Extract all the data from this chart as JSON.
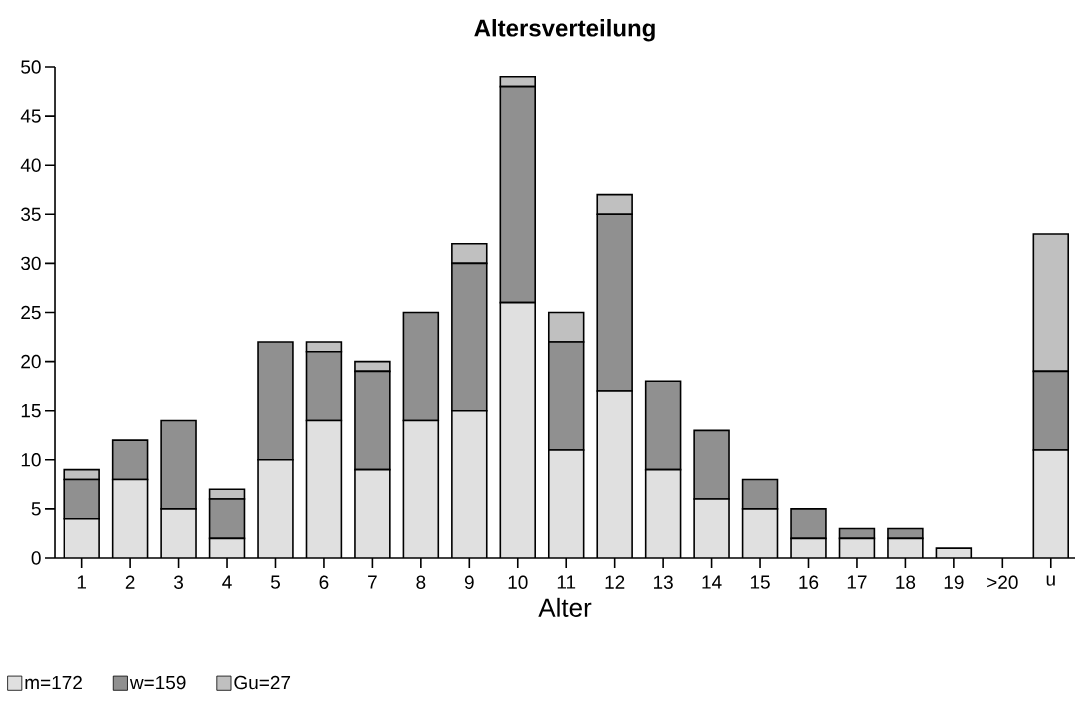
{
  "chart_data": {
    "type": "bar",
    "stacked": true,
    "title": "Altersverteilung",
    "xlabel": "Alter",
    "categories": [
      "1",
      "2",
      "3",
      "4",
      "5",
      "6",
      "7",
      "8",
      "9",
      "10",
      "11",
      "12",
      "13",
      "14",
      "15",
      "16",
      "17",
      "18",
      "19",
      ">20",
      "u"
    ],
    "series": [
      {
        "name": "m=172",
        "color": "#e0e0e0",
        "values": [
          4,
          8,
          5,
          2,
          10,
          14,
          9,
          14,
          15,
          26,
          11,
          17,
          9,
          6,
          5,
          2,
          2,
          2,
          1,
          0,
          11
        ]
      },
      {
        "name": "w=159",
        "color": "#909090",
        "values": [
          4,
          4,
          9,
          4,
          12,
          7,
          10,
          11,
          15,
          22,
          11,
          18,
          9,
          7,
          3,
          3,
          1,
          1,
          0,
          0,
          8
        ]
      },
      {
        "name": "Gu=27",
        "color": "#c0c0c0",
        "values": [
          1,
          0,
          0,
          1,
          0,
          1,
          1,
          0,
          2,
          1,
          3,
          2,
          0,
          0,
          0,
          0,
          0,
          0,
          0,
          0,
          14
        ]
      }
    ],
    "ylim": [
      0,
      50
    ],
    "yticks": [
      0,
      5,
      10,
      15,
      20,
      25,
      30,
      35,
      40,
      45,
      50
    ],
    "grid": false,
    "legend": "bottom"
  }
}
